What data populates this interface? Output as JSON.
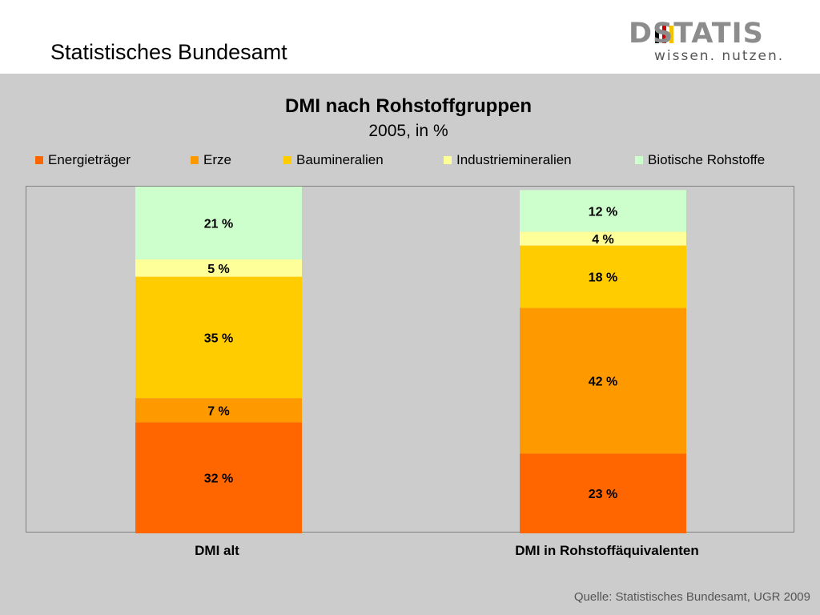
{
  "header": {
    "org_name": "Statistisches Bundesamt",
    "logo_word": "DSTATIS",
    "logo_tagline": "wissen. nutzen."
  },
  "source_text": "Quelle: Statistisches Bundesamt, UGR 2009",
  "colors": {
    "background": "#cccccc",
    "Energieträger": "#ff6600",
    "Erze": "#ff9900",
    "Baumineralien": "#ffcc00",
    "Industriemineralien": "#ffff99",
    "Biotische Rohstoffe": "#ccffcc"
  },
  "chart_data": {
    "type": "bar",
    "stacked": true,
    "title": "DMI nach Rohstoffgruppen",
    "subtitle": "2005, in %",
    "xlabel": "",
    "ylabel": "",
    "ylim": [
      0,
      100
    ],
    "grid": false,
    "legend_position": "top",
    "categories": [
      "DMI alt",
      "DMI in Rohstoffäquivalenten"
    ],
    "series": [
      {
        "name": "Energieträger",
        "values": [
          32,
          23
        ],
        "color": "#ff6600"
      },
      {
        "name": "Erze",
        "values": [
          7,
          42
        ],
        "color": "#ff9900"
      },
      {
        "name": "Baumineralien",
        "values": [
          35,
          18
        ],
        "color": "#ffcc00"
      },
      {
        "name": "Industriemineralien",
        "values": [
          5,
          4
        ],
        "color": "#ffff99"
      },
      {
        "name": "Biotische Rohstoffe",
        "values": [
          21,
          12
        ],
        "color": "#ccffcc"
      }
    ],
    "data_labels": [
      [
        "32 %",
        "7 %",
        "35 %",
        "5 %",
        "21 %"
      ],
      [
        "23 %",
        "42 %",
        "18 %",
        "4 %",
        "12 %"
      ]
    ]
  }
}
